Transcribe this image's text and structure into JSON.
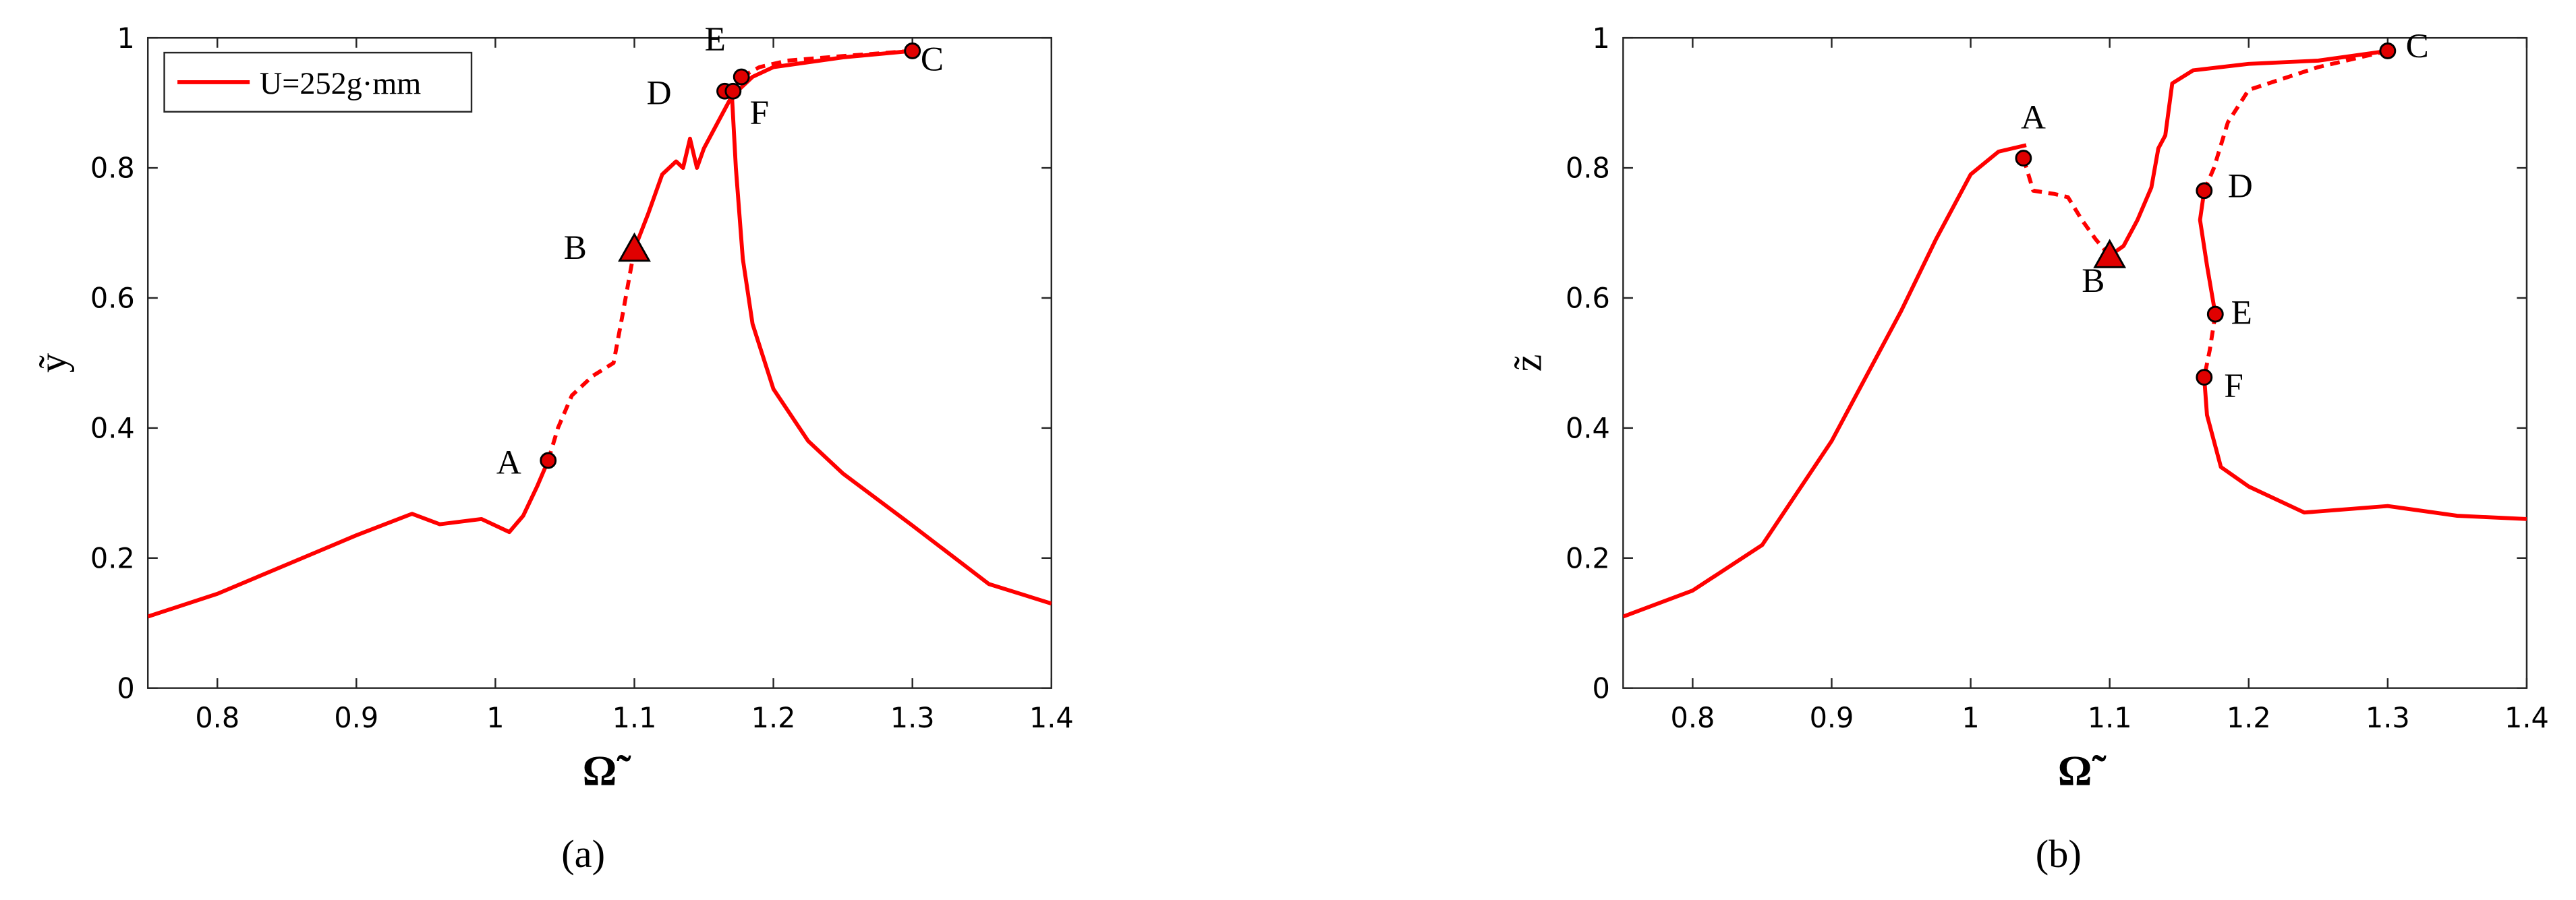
{
  "chart_data": [
    {
      "type": "line",
      "caption": "(a)",
      "xlabel": "Ω̃",
      "ylabel": "ỹ",
      "xlim": [
        0.75,
        1.4
      ],
      "xticks": [
        0.8,
        0.9,
        1,
        1.1,
        1.2,
        1.3,
        1.4
      ],
      "ylim": [
        0,
        1
      ],
      "yticks": [
        0,
        0.2,
        0.4,
        0.6,
        0.8,
        1
      ],
      "legend": "upper left",
      "series": [
        {
          "name": "U=252g·mm",
          "color": "#ff0000",
          "dashed": false,
          "x": [
            0.75,
            0.8,
            0.85,
            0.9,
            0.94,
            0.96,
            0.99,
            1.01,
            1.02,
            1.03,
            1.038
          ],
          "values": [
            0.11,
            0.145,
            0.19,
            0.235,
            0.268,
            0.252,
            0.26,
            0.24,
            0.265,
            0.31,
            0.35
          ]
        },
        {
          "color": "#ff0000",
          "dashed": true,
          "x": [
            1.038,
            1.045,
            1.055,
            1.07,
            1.085,
            1.092,
            1.1
          ],
          "values": [
            0.35,
            0.4,
            0.45,
            0.48,
            0.5,
            0.58,
            0.675
          ]
        },
        {
          "color": "#ff0000",
          "dashed": false,
          "x": [
            1.1,
            1.11,
            1.12,
            1.13,
            1.135,
            1.14,
            1.145,
            1.15,
            1.16,
            1.17,
            1.185,
            1.2,
            1.25,
            1.3
          ],
          "values": [
            0.675,
            0.73,
            0.79,
            0.81,
            0.8,
            0.845,
            0.8,
            0.83,
            0.87,
            0.91,
            0.94,
            0.955,
            0.97,
            0.98
          ]
        },
        {
          "color": "#ff0000",
          "dashed": true,
          "x": [
            1.177,
            1.19,
            1.21,
            1.25,
            1.3
          ],
          "values": [
            0.94,
            0.955,
            0.965,
            0.972,
            0.98
          ]
        },
        {
          "color": "#ff0000",
          "dashed": false,
          "x": [
            1.17,
            1.173,
            1.178,
            1.185,
            1.2,
            1.225,
            1.25,
            1.3,
            1.355,
            1.4
          ],
          "values": [
            0.918,
            0.8,
            0.66,
            0.56,
            0.46,
            0.38,
            0.33,
            0.25,
            0.16,
            0.13
          ]
        }
      ],
      "points": [
        {
          "label": "A",
          "x": 1.038,
          "y": 0.35,
          "marker": "circle"
        },
        {
          "label": "B",
          "x": 1.1,
          "y": 0.675,
          "marker": "triangle"
        },
        {
          "label": "C",
          "x": 1.3,
          "y": 0.98,
          "marker": "circle"
        },
        {
          "label": "D",
          "x": 1.165,
          "y": 0.918,
          "marker": "circle"
        },
        {
          "label": "E",
          "x": 1.177,
          "y": 0.94,
          "marker": "circle"
        },
        {
          "label": "F",
          "x": 1.171,
          "y": 0.918,
          "marker": "circle"
        }
      ]
    },
    {
      "type": "line",
      "caption": "(b)",
      "xlabel": "Ω̃",
      "ylabel": "z̃",
      "xlim": [
        0.75,
        1.4
      ],
      "xticks": [
        0.8,
        0.9,
        1,
        1.1,
        1.2,
        1.3,
        1.4
      ],
      "ylim": [
        0,
        1
      ],
      "yticks": [
        0,
        0.2,
        0.4,
        0.6,
        0.8,
        1
      ],
      "series": [
        {
          "color": "#ff0000",
          "dashed": false,
          "x": [
            0.75,
            0.8,
            0.85,
            0.9,
            0.95,
            0.975,
            1.0,
            1.02,
            1.04
          ],
          "values": [
            0.11,
            0.15,
            0.22,
            0.38,
            0.58,
            0.69,
            0.79,
            0.825,
            0.835
          ]
        },
        {
          "color": "#ff0000",
          "dashed": true,
          "x": [
            1.038,
            1.045,
            1.06,
            1.07,
            1.08,
            1.09,
            1.1
          ],
          "values": [
            0.815,
            0.765,
            0.76,
            0.755,
            0.72,
            0.69,
            0.665
          ]
        },
        {
          "color": "#ff0000",
          "dashed": false,
          "x": [
            1.1,
            1.11,
            1.12,
            1.13,
            1.135,
            1.14,
            1.145,
            1.16,
            1.2,
            1.25,
            1.3
          ],
          "values": [
            0.665,
            0.68,
            0.72,
            0.77,
            0.83,
            0.85,
            0.93,
            0.95,
            0.96,
            0.965,
            0.98
          ]
        },
        {
          "color": "#ff0000",
          "dashed": true,
          "x": [
            1.3,
            1.25,
            1.2,
            1.185,
            1.175,
            1.168
          ],
          "values": [
            0.98,
            0.955,
            0.92,
            0.87,
            0.8,
            0.765
          ]
        },
        {
          "color": "#ff0000",
          "dashed": false,
          "x": [
            1.168,
            1.165,
            1.17,
            1.176
          ],
          "values": [
            0.765,
            0.72,
            0.65,
            0.575
          ]
        },
        {
          "color": "#ff0000",
          "dashed": true,
          "x": [
            1.176,
            1.172,
            1.168
          ],
          "values": [
            0.575,
            0.52,
            0.478
          ]
        },
        {
          "color": "#ff0000",
          "dashed": false,
          "x": [
            1.168,
            1.17,
            1.18,
            1.2,
            1.24,
            1.3,
            1.35,
            1.4
          ],
          "values": [
            0.478,
            0.42,
            0.34,
            0.31,
            0.27,
            0.28,
            0.265,
            0.26
          ]
        }
      ],
      "points": [
        {
          "label": "A",
          "x": 1.038,
          "y": 0.815,
          "marker": "circle"
        },
        {
          "label": "B",
          "x": 1.1,
          "y": 0.665,
          "marker": "triangle"
        },
        {
          "label": "C",
          "x": 1.3,
          "y": 0.98,
          "marker": "circle"
        },
        {
          "label": "D",
          "x": 1.168,
          "y": 0.765,
          "marker": "circle"
        },
        {
          "label": "E",
          "x": 1.176,
          "y": 0.575,
          "marker": "circle"
        },
        {
          "label": "F",
          "x": 1.168,
          "y": 0.478,
          "marker": "circle"
        }
      ]
    }
  ]
}
